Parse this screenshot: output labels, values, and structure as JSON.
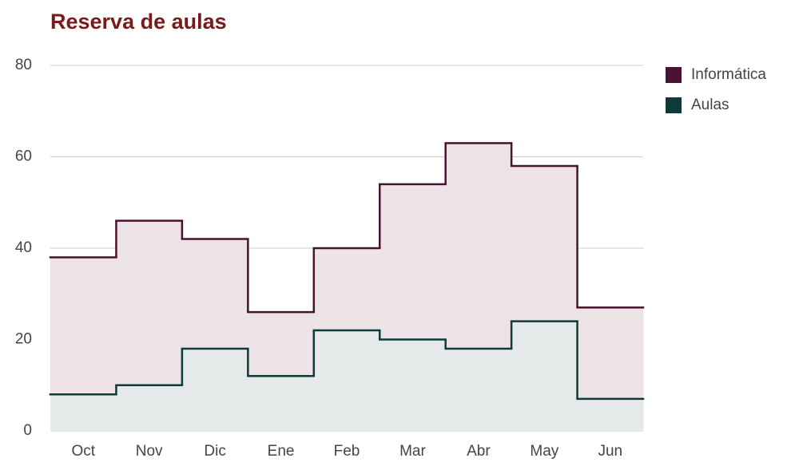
{
  "chart_data": {
    "type": "area",
    "stepped": true,
    "title": "Reserva de aulas",
    "categories": [
      "Oct",
      "Nov",
      "Dic",
      "Ene",
      "Feb",
      "Mar",
      "Abr",
      "May",
      "Jun"
    ],
    "series": [
      {
        "name": "Informática",
        "color": "#4a1232",
        "fill": "#ede3e6",
        "values": [
          38,
          46,
          42,
          26,
          40,
          54,
          63,
          58,
          27
        ]
      },
      {
        "name": "Aulas",
        "color": "#0d3a3a",
        "fill": "#e5e9ea",
        "values": [
          8,
          10,
          18,
          12,
          22,
          20,
          18,
          24,
          7
        ]
      }
    ],
    "ylim": [
      0,
      80
    ],
    "yticks": [
      0,
      20,
      40,
      60,
      80
    ],
    "grid": true,
    "legend": "right"
  }
}
